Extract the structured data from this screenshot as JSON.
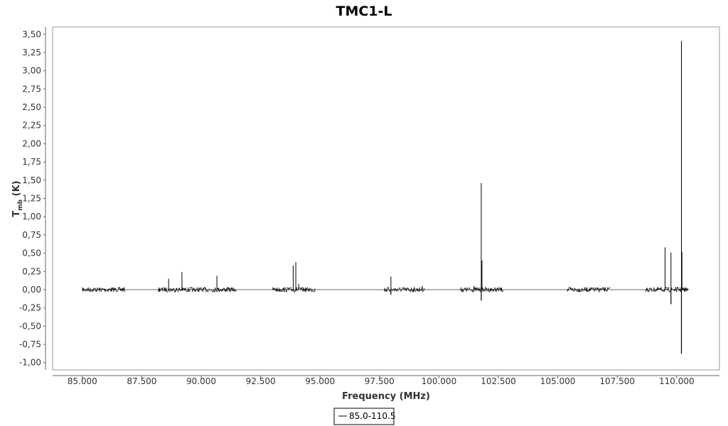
{
  "chart_data": {
    "type": "line",
    "title": "TMC1-L",
    "xlabel": "Frequency (MHz)",
    "ylabel_main": "T",
    "ylabel_sub": "mb",
    "ylabel_unit": " (K)",
    "xlim": [
      83750,
      111800
    ],
    "ylim": [
      -1.1,
      3.6
    ],
    "x_ticks": [
      85000,
      87500,
      90000,
      92500,
      95000,
      97500,
      100000,
      102500,
      105000,
      107500,
      110000
    ],
    "x_tick_labels": [
      "85.000",
      "87.500",
      "90.000",
      "92.500",
      "95.000",
      "97.500",
      "100.000",
      "102.500",
      "105.000",
      "107.500",
      "110.000"
    ],
    "y_ticks": [
      -1.0,
      -0.75,
      -0.5,
      -0.25,
      0.0,
      0.25,
      0.5,
      0.75,
      1.0,
      1.25,
      1.5,
      1.75,
      2.0,
      2.25,
      2.5,
      2.75,
      3.0,
      3.25,
      3.5
    ],
    "y_tick_labels": [
      "-1,00",
      "-0,75",
      "-0,50",
      "-0,25",
      "0,00",
      "0,25",
      "0,50",
      "0,75",
      "1,00",
      "1,25",
      "1,50",
      "1,75",
      "2,00",
      "2,25",
      "2,50",
      "2,75",
      "3,00",
      "3,25",
      "3,50"
    ],
    "grid": false,
    "legend_position": "bottom-center",
    "series": [
      {
        "name": "85.0-110.5",
        "color": "#000000",
        "bands": [
          {
            "start": 85000,
            "end": 86800
          },
          {
            "start": 88200,
            "end": 91500
          },
          {
            "start": 93000,
            "end": 94800
          },
          {
            "start": 97700,
            "end": 99400
          },
          {
            "start": 100900,
            "end": 102700
          },
          {
            "start": 105400,
            "end": 107200
          },
          {
            "start": 108700,
            "end": 110500
          }
        ],
        "peaks": [
          {
            "x": 88630,
            "y": 0.15
          },
          {
            "x": 89190,
            "y": 0.24
          },
          {
            "x": 90660,
            "y": 0.19
          },
          {
            "x": 93870,
            "y": 0.33
          },
          {
            "x": 93980,
            "y": 0.38
          },
          {
            "x": 94100,
            "y": 0.08
          },
          {
            "x": 97980,
            "y": 0.18
          },
          {
            "x": 99300,
            "y": 0.05
          },
          {
            "x": 101470,
            "y": 0.05
          },
          {
            "x": 101780,
            "y": 1.46
          },
          {
            "x": 101810,
            "y": 0.4
          },
          {
            "x": 109510,
            "y": 0.58
          },
          {
            "x": 109760,
            "y": 0.51
          },
          {
            "x": 110200,
            "y": 3.41
          },
          {
            "x": 110220,
            "y": 0.52
          }
        ],
        "dips": [
          {
            "x": 97980,
            "y": -0.07
          },
          {
            "x": 101780,
            "y": -0.15
          },
          {
            "x": 109760,
            "y": -0.2
          },
          {
            "x": 110200,
            "y": -0.88
          }
        ]
      }
    ]
  }
}
